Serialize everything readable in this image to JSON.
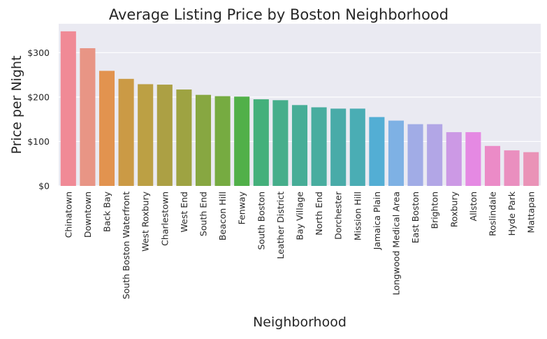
{
  "chart_data": {
    "type": "bar",
    "title": "Average Listing Price by Boston Neighborhood",
    "xlabel": "Neighborhood",
    "ylabel": "Price per Night",
    "categories": [
      "Chinatown",
      "Downtown",
      "Back Bay",
      "South Boston Waterfront",
      "West Roxbury",
      "Charlestown",
      "West End",
      "South End",
      "Beacon Hill",
      "Fenway",
      "South Boston",
      "Leather District",
      "Bay Village",
      "North End",
      "Dorchester",
      "Mission Hill",
      "Jamaica Plain",
      "Longwood Medical Area",
      "East Boston",
      "Brighton",
      "Roxbury",
      "Allston",
      "Roslindale",
      "Hyde Park",
      "Mattapan"
    ],
    "values": [
      348,
      310,
      259,
      241,
      229,
      228,
      217,
      205,
      202,
      201,
      195,
      193,
      182,
      177,
      174,
      174,
      155,
      147,
      139,
      139,
      121,
      121,
      90,
      80,
      76
    ],
    "colors": [
      "#f08a96",
      "#e89585",
      "#e2934f",
      "#cb9a45",
      "#bca044",
      "#acA044",
      "#9ea342",
      "#87a741",
      "#76ab41",
      "#51b049",
      "#44b07b",
      "#46ae8b",
      "#47ad97",
      "#48ad9f",
      "#49aba8",
      "#4aadb4",
      "#53aed4",
      "#7eb1e4",
      "#a1ace6",
      "#b2a6e6",
      "#cc99e5",
      "#e589e3",
      "#eb8bc7",
      "#ea8fbf",
      "#ea93b7"
    ],
    "yticks": [
      0,
      100,
      200,
      300
    ],
    "ytick_labels": [
      "$0",
      "$100",
      "$200",
      "$300"
    ],
    "ylim": [
      0,
      365
    ],
    "grid": true,
    "legend": "none",
    "background": "#eaeaf2",
    "grid_color": "#ffffff"
  }
}
